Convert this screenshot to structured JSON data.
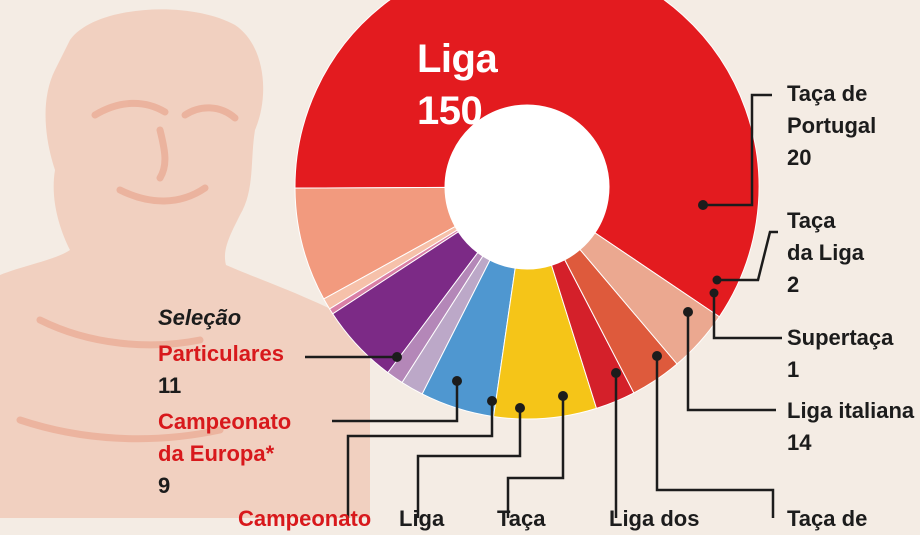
{
  "chart_data": {
    "type": "pie",
    "style": "donut",
    "colors": {
      "background": "#f4ece4",
      "leader_line": "#1c1c1c",
      "label_text": "#1c1c1c",
      "national_team_text": "#d8191c"
    },
    "slices": [
      {
        "id": "liga",
        "name": "Liga",
        "value": 150,
        "color": "#e31b1f"
      },
      {
        "id": "taca-portugal",
        "name": "Taça de Portugal",
        "value": 20,
        "color": "#f29a7e"
      },
      {
        "id": "taca-liga",
        "name": "Taça da Liga",
        "value": 2,
        "color": "#f6c1aa"
      },
      {
        "id": "supertaca",
        "name": "Supertaça",
        "value": 1,
        "color": "#d97fa6"
      },
      {
        "id": "liga-italiana",
        "name": "Liga italiana",
        "value": 14,
        "color": "#7c2a86"
      },
      {
        "id": "taca-de-2",
        "name": "Taça de",
        "value": 3,
        "color": "#b487b8"
      },
      {
        "id": "liga-dos",
        "name": "Liga dos",
        "value": 4,
        "color": "#bca8c8"
      },
      {
        "id": "blue-slice",
        "name": "",
        "value": 13,
        "color": "#4f97d0"
      },
      {
        "id": "yellow-slice",
        "name": "",
        "value": 18,
        "color": "#f5c518"
      },
      {
        "id": "red-small",
        "name": "",
        "value": 7,
        "color": "#d4202a"
      },
      {
        "id": "campeonato-europa",
        "name": "Campeonato da Europa*",
        "value": 9,
        "color": "#de5a3c"
      },
      {
        "id": "particulares",
        "name": "Particulares",
        "value": 11,
        "color": "#eba890"
      }
    ],
    "labels": {
      "liga_name": "Liga",
      "liga_value": "150",
      "taca_portugal_1": "Taça de",
      "taca_portugal_2": "Portugal",
      "taca_portugal_value": "20",
      "taca_liga_1": "Taça",
      "taca_liga_2": "da Liga",
      "taca_liga_value": "2",
      "supertaca": "Supertaça",
      "supertaca_value": "1",
      "liga_italiana": "Liga italiana",
      "liga_italiana_value": "14",
      "selecao_heading": "Seleção",
      "particulares": "Particulares",
      "particulares_value": "11",
      "campeonato_1": "Campeonato",
      "campeonato_2": "da Europa*",
      "campeonato_value": "9",
      "bottom_campeonato": "Campeonato",
      "bottom_liga": "Liga",
      "bottom_taca": "Taça",
      "bottom_liga_dos": "Liga dos",
      "bottom_taca_de": "Taça de"
    }
  }
}
